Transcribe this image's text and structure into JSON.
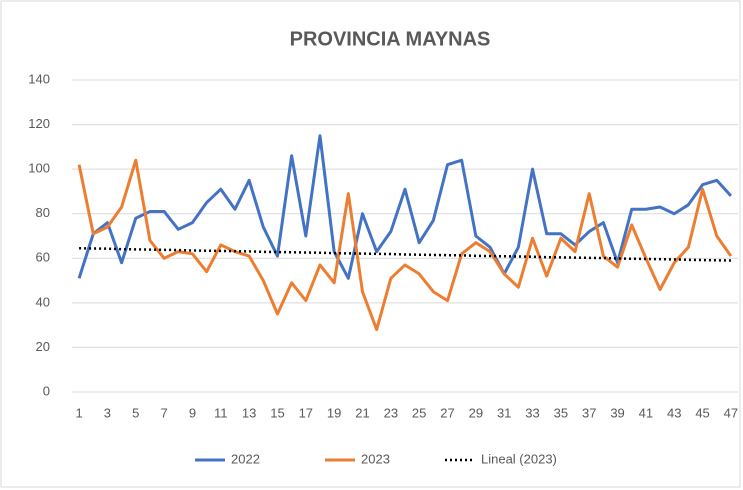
{
  "chart_data": {
    "type": "line",
    "title": "PROVINCIA MAYNAS",
    "categories": [
      1,
      null,
      3,
      null,
      5,
      null,
      7,
      null,
      9,
      null,
      11,
      null,
      13,
      null,
      15,
      null,
      17,
      null,
      19,
      null,
      21,
      null,
      23,
      null,
      25,
      null,
      27,
      null,
      29,
      null,
      31,
      null,
      33,
      null,
      35,
      null,
      37,
      null,
      39,
      null,
      41,
      null,
      43,
      null,
      45,
      null,
      47
    ],
    "series": [
      {
        "name": "2022",
        "color": "#4472c4",
        "style": "solid",
        "values": [
          51,
          71,
          76,
          58,
          78,
          81,
          81,
          73,
          76,
          85,
          91,
          82,
          95,
          74,
          61,
          106,
          70,
          115,
          63,
          51,
          80,
          63,
          72,
          91,
          67,
          77,
          102,
          104,
          70,
          65,
          53,
          65,
          100,
          71,
          71,
          66,
          72,
          76,
          58,
          82,
          82,
          83,
          80,
          84,
          93,
          95,
          88
        ]
      },
      {
        "name": "2023",
        "color": "#ed7d31",
        "style": "solid",
        "values": [
          102,
          71,
          74,
          83,
          104,
          68,
          60,
          63,
          62,
          54,
          66,
          63,
          61,
          50,
          35,
          49,
          41,
          57,
          49,
          89,
          45,
          28,
          51,
          57,
          53,
          45,
          41,
          62,
          67,
          63,
          53,
          47,
          69,
          52,
          69,
          63,
          89,
          61,
          56,
          75,
          60,
          46,
          58,
          65,
          91,
          70,
          61
        ]
      },
      {
        "name": "Lineal (2023)",
        "color": "#000000",
        "style": "dotted",
        "values": [
          64.5,
          64.4,
          64.3,
          64.1,
          64.0,
          63.9,
          63.8,
          63.7,
          63.5,
          63.4,
          63.3,
          63.2,
          63.1,
          62.9,
          62.8,
          62.7,
          62.6,
          62.5,
          62.3,
          62.2,
          62.1,
          62.0,
          61.9,
          61.7,
          61.6,
          61.5,
          61.4,
          61.3,
          61.1,
          61.0,
          60.9,
          60.8,
          60.7,
          60.5,
          60.4,
          60.3,
          60.2,
          60.1,
          59.9,
          59.8,
          59.7,
          59.6,
          59.5,
          59.3,
          59.2,
          59.1,
          59.0
        ]
      }
    ],
    "ylim": [
      0,
      140
    ],
    "yticks": [
      0,
      20,
      40,
      60,
      80,
      100,
      120,
      140
    ],
    "grid": true,
    "legend": "bottom"
  }
}
